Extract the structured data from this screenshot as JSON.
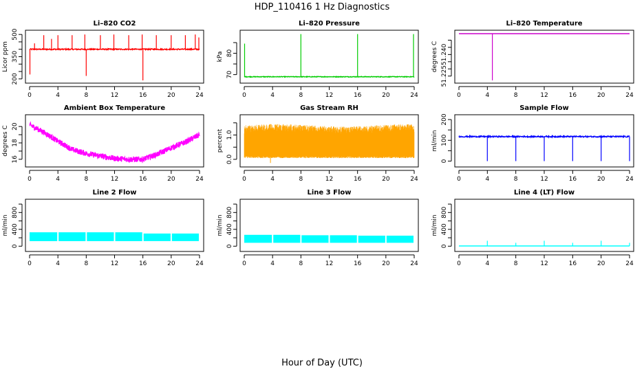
{
  "figure": {
    "title": "HDP_110416  1 Hz Diagnostics",
    "xlabel": "Hour of Day (UTC)"
  },
  "chart_data": [
    {
      "type": "line",
      "title": "Li–820 CO2",
      "ylabel": "Licor ppm",
      "color": "#ff0000",
      "xlim": [
        0,
        24
      ],
      "xticks": [
        0,
        4,
        8,
        12,
        16,
        20,
        24
      ],
      "xtick_labels": [
        "0",
        "4",
        "8",
        "12",
        "16",
        "20",
        "24"
      ],
      "ylim": [
        190,
        510
      ],
      "yticks": [
        200,
        250,
        300,
        350,
        400,
        450,
        500
      ],
      "ytick_labels": [
        "200",
        "",
        "",
        "350",
        "",
        "",
        "500"
      ],
      "baseline": 400,
      "noise": 4,
      "spikes": [
        {
          "x": 0.05,
          "y": 230
        },
        {
          "x": 0.7,
          "y": 440
        },
        {
          "x": 2.0,
          "y": 495
        },
        {
          "x": 3.1,
          "y": 470
        },
        {
          "x": 4.0,
          "y": 495
        },
        {
          "x": 6.0,
          "y": 495
        },
        {
          "x": 7.8,
          "y": 500
        },
        {
          "x": 8.0,
          "y": 220
        },
        {
          "x": 10.0,
          "y": 495
        },
        {
          "x": 11.9,
          "y": 500
        },
        {
          "x": 14.0,
          "y": 495
        },
        {
          "x": 15.9,
          "y": 500
        },
        {
          "x": 16.0,
          "y": 190
        },
        {
          "x": 17.9,
          "y": 495
        },
        {
          "x": 20.0,
          "y": 495
        },
        {
          "x": 22.0,
          "y": 495
        },
        {
          "x": 23.4,
          "y": 500
        },
        {
          "x": 23.9,
          "y": 480
        }
      ]
    },
    {
      "type": "line",
      "title": "Li–820 Pressure",
      "ylabel": "kPa",
      "color": "#00cc00",
      "xlim": [
        0,
        24
      ],
      "xticks": [
        0,
        4,
        8,
        12,
        16,
        20,
        24
      ],
      "xtick_labels": [
        "0",
        "4",
        "8",
        "12",
        "16",
        "20",
        "24"
      ],
      "ylim": [
        67.3,
        89.5
      ],
      "yticks": [
        70,
        75,
        80,
        85
      ],
      "ytick_labels": [
        "70",
        "",
        "80",
        ""
      ],
      "baseline": 69.0,
      "noise": 0.15,
      "spikes": [
        {
          "x": 0.05,
          "y": 84.5
        },
        {
          "x": 8.0,
          "y": 89.0
        },
        {
          "x": 16.0,
          "y": 89.0
        },
        {
          "x": 23.9,
          "y": 89.0
        }
      ]
    },
    {
      "type": "line",
      "title": "Li–820 Temperature",
      "ylabel": "degrees C",
      "color": "#cc00cc",
      "xlim": [
        0,
        24
      ],
      "xticks": [
        0,
        4,
        8,
        12,
        16,
        20,
        24
      ],
      "xtick_labels": [
        "0",
        "4",
        "8",
        "12",
        "16",
        "20",
        "24"
      ],
      "ylim": [
        51.222,
        51.255
      ],
      "yticks": [
        51.225,
        51.23,
        51.235,
        51.24,
        51.245,
        51.25
      ],
      "ytick_labels": [
        "51.225",
        "",
        "",
        "51.240",
        "",
        ""
      ],
      "baseline": 51.2545,
      "noise": 0,
      "spikes": [
        {
          "x": 4.7,
          "y": 51.222
        }
      ]
    },
    {
      "type": "line",
      "title": "Ambient Box Temperature",
      "ylabel": "degrees C",
      "color": "#ff00ff",
      "xlim": [
        0,
        24
      ],
      "xticks": [
        0,
        4,
        8,
        12,
        16,
        20,
        24
      ],
      "xtick_labels": [
        "0",
        "4",
        "8",
        "12",
        "16",
        "20",
        "24"
      ],
      "ylim": [
        15.4,
        21.1
      ],
      "yticks": [
        16,
        17,
        18,
        19,
        20
      ],
      "ytick_labels": [
        "16",
        "",
        "18",
        "",
        "20"
      ],
      "curve": [
        [
          0,
          20.2
        ],
        [
          2,
          19.3
        ],
        [
          4,
          18.2
        ],
        [
          6,
          17.2
        ],
        [
          8,
          16.7
        ],
        [
          10,
          16.4
        ],
        [
          12,
          16.1
        ],
        [
          14,
          16.0
        ],
        [
          16,
          16.0
        ],
        [
          18,
          16.6
        ],
        [
          20,
          17.4
        ],
        [
          22,
          18.1
        ],
        [
          24,
          19.0
        ]
      ],
      "band": 0.35
    },
    {
      "type": "line",
      "title": "Gas Stream RH",
      "ylabel": "percent",
      "color": "#ffa500",
      "xlim": [
        0,
        24
      ],
      "xticks": [
        0,
        4,
        8,
        12,
        16,
        20,
        24
      ],
      "xtick_labels": [
        "0",
        "4",
        "8",
        "12",
        "16",
        "20",
        "24"
      ],
      "ylim": [
        -0.2,
        1.72
      ],
      "yticks": [
        0.0,
        0.5,
        1.0,
        1.5
      ],
      "ytick_labels": [
        "0.0",
        "",
        "1.0",
        ""
      ],
      "band_low": 0.05,
      "band_high": 1.4
    },
    {
      "type": "line",
      "title": "Sample Flow",
      "ylabel": "ml/min",
      "color": "#0000ff",
      "xlim": [
        0,
        24
      ],
      "xticks": [
        0,
        4,
        8,
        12,
        16,
        20,
        24
      ],
      "xtick_labels": [
        "0",
        "4",
        "8",
        "12",
        "16",
        "20",
        "24"
      ],
      "ylim": [
        -15,
        210
      ],
      "yticks": [
        0,
        50,
        100,
        150,
        200
      ],
      "ytick_labels": [
        "0",
        "",
        "100",
        "",
        "200"
      ],
      "baseline": 118,
      "noise": 3,
      "spikes": [
        {
          "x": 4.0,
          "y": 0
        },
        {
          "x": 8.0,
          "y": 0
        },
        {
          "x": 12.0,
          "y": 0
        },
        {
          "x": 16.0,
          "y": 0
        },
        {
          "x": 20.0,
          "y": 0
        },
        {
          "x": 24.0,
          "y": 0
        }
      ]
    },
    {
      "type": "area",
      "title": "Line 2 Flow",
      "ylabel": "ml/min",
      "color": "#00ffff",
      "xlim": [
        0,
        24
      ],
      "xticks": [
        0,
        4,
        8,
        12,
        16,
        20,
        24
      ],
      "xtick_labels": [
        "0",
        "4",
        "8",
        "12",
        "16",
        "20",
        "24"
      ],
      "ylim": [
        -60,
        1050
      ],
      "yticks": [
        0,
        200,
        400,
        600,
        800,
        1000
      ],
      "ytick_labels": [
        "0",
        "",
        "400",
        "",
        "800",
        ""
      ],
      "band_low": 120,
      "segments": [
        [
          0,
          4,
          330
        ],
        [
          4,
          8,
          330
        ],
        [
          8,
          12,
          330
        ],
        [
          12,
          16,
          330
        ],
        [
          16,
          20,
          300
        ],
        [
          20,
          24,
          300
        ]
      ]
    },
    {
      "type": "area",
      "title": "Line 3 Flow",
      "ylabel": "ml/min",
      "color": "#00ffff",
      "xlim": [
        0,
        24
      ],
      "xticks": [
        0,
        4,
        8,
        12,
        16,
        20,
        24
      ],
      "xtick_labels": [
        "0",
        "4",
        "8",
        "12",
        "16",
        "20",
        "24"
      ],
      "ylim": [
        -60,
        1050
      ],
      "yticks": [
        0,
        200,
        400,
        600,
        800,
        1000
      ],
      "ytick_labels": [
        "0",
        "",
        "400",
        "",
        "800",
        ""
      ],
      "band_low": 80,
      "segments": [
        [
          0,
          4,
          270
        ],
        [
          4,
          8,
          270
        ],
        [
          8,
          12,
          260
        ],
        [
          12,
          16,
          260
        ],
        [
          16,
          20,
          250
        ],
        [
          20,
          24,
          250
        ]
      ]
    },
    {
      "type": "line",
      "title": "Line 4 (LT) Flow",
      "ylabel": "ml/min",
      "color": "#00ffff",
      "xlim": [
        0,
        24
      ],
      "xticks": [
        0,
        4,
        8,
        12,
        16,
        20,
        24
      ],
      "xtick_labels": [
        "0",
        "4",
        "8",
        "12",
        "16",
        "20",
        "24"
      ],
      "ylim": [
        -60,
        1050
      ],
      "yticks": [
        0,
        200,
        400,
        600,
        800,
        1000
      ],
      "ytick_labels": [
        "0",
        "",
        "400",
        "",
        "800",
        ""
      ],
      "baseline": 5,
      "noise": 0,
      "spikes": [
        {
          "x": 4.0,
          "y": 130
        },
        {
          "x": 8.0,
          "y": 80
        },
        {
          "x": 12.0,
          "y": 130
        },
        {
          "x": 16.0,
          "y": 80
        },
        {
          "x": 20.0,
          "y": 130
        },
        {
          "x": 24.0,
          "y": 80
        }
      ]
    }
  ]
}
